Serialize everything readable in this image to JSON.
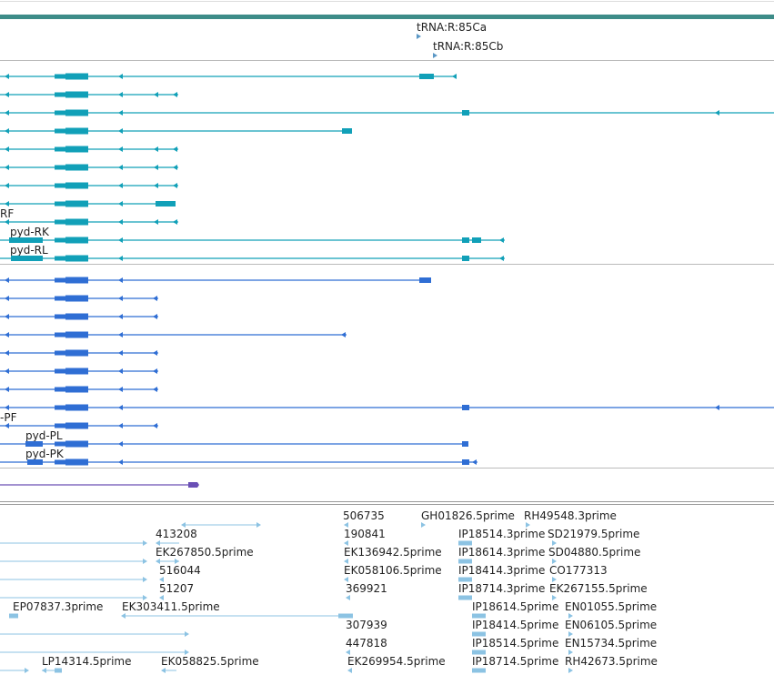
{
  "colors": {
    "header_bar": "#3d8c88",
    "divider": "#bbbbbb",
    "trna": "#5a97c5",
    "gene_teal": "#11a0b8",
    "gene_blue": "#2f6ed4",
    "gene_purple": "#6a4fb5",
    "est": "#8cc3e3",
    "text": "#222222"
  },
  "trna_labels": [
    "tRNA:R:85Ca",
    "tRNA:R:85Cb"
  ],
  "transcript_labels": {
    "rf": "RF",
    "rk": "pyd-RK",
    "rl": "pyd-RL",
    "pf": "-PF",
    "pl": "pyd-PL",
    "pk": "pyd-PK"
  },
  "est_labels": [
    "506735",
    "GH01826.5prime",
    "RH49548.3prime",
    "413208",
    "190841",
    "IP18514.3prime",
    "SD21979.5prime",
    "EK267850.5prime",
    "EK136942.5prime",
    "IP18614.3prime",
    "SD04880.5prime",
    "516044",
    "EK058106.5prime",
    "IP18414.3prime",
    "CO177313",
    "51207",
    "369921",
    "IP18714.3prime",
    "EK267155.5prime",
    "EP07837.3prime",
    "EK303411.5prime",
    "IP18614.5prime",
    "EN01055.5prime",
    "307939",
    "IP18414.5prime",
    "EN06105.5prime",
    "447818",
    "IP18514.5prime",
    "EN15734.5prime",
    "LP14314.5prime",
    "EK058825.5prime",
    "EK269954.5prime",
    "IP18714.5prime",
    "RH42673.5prime"
  ]
}
